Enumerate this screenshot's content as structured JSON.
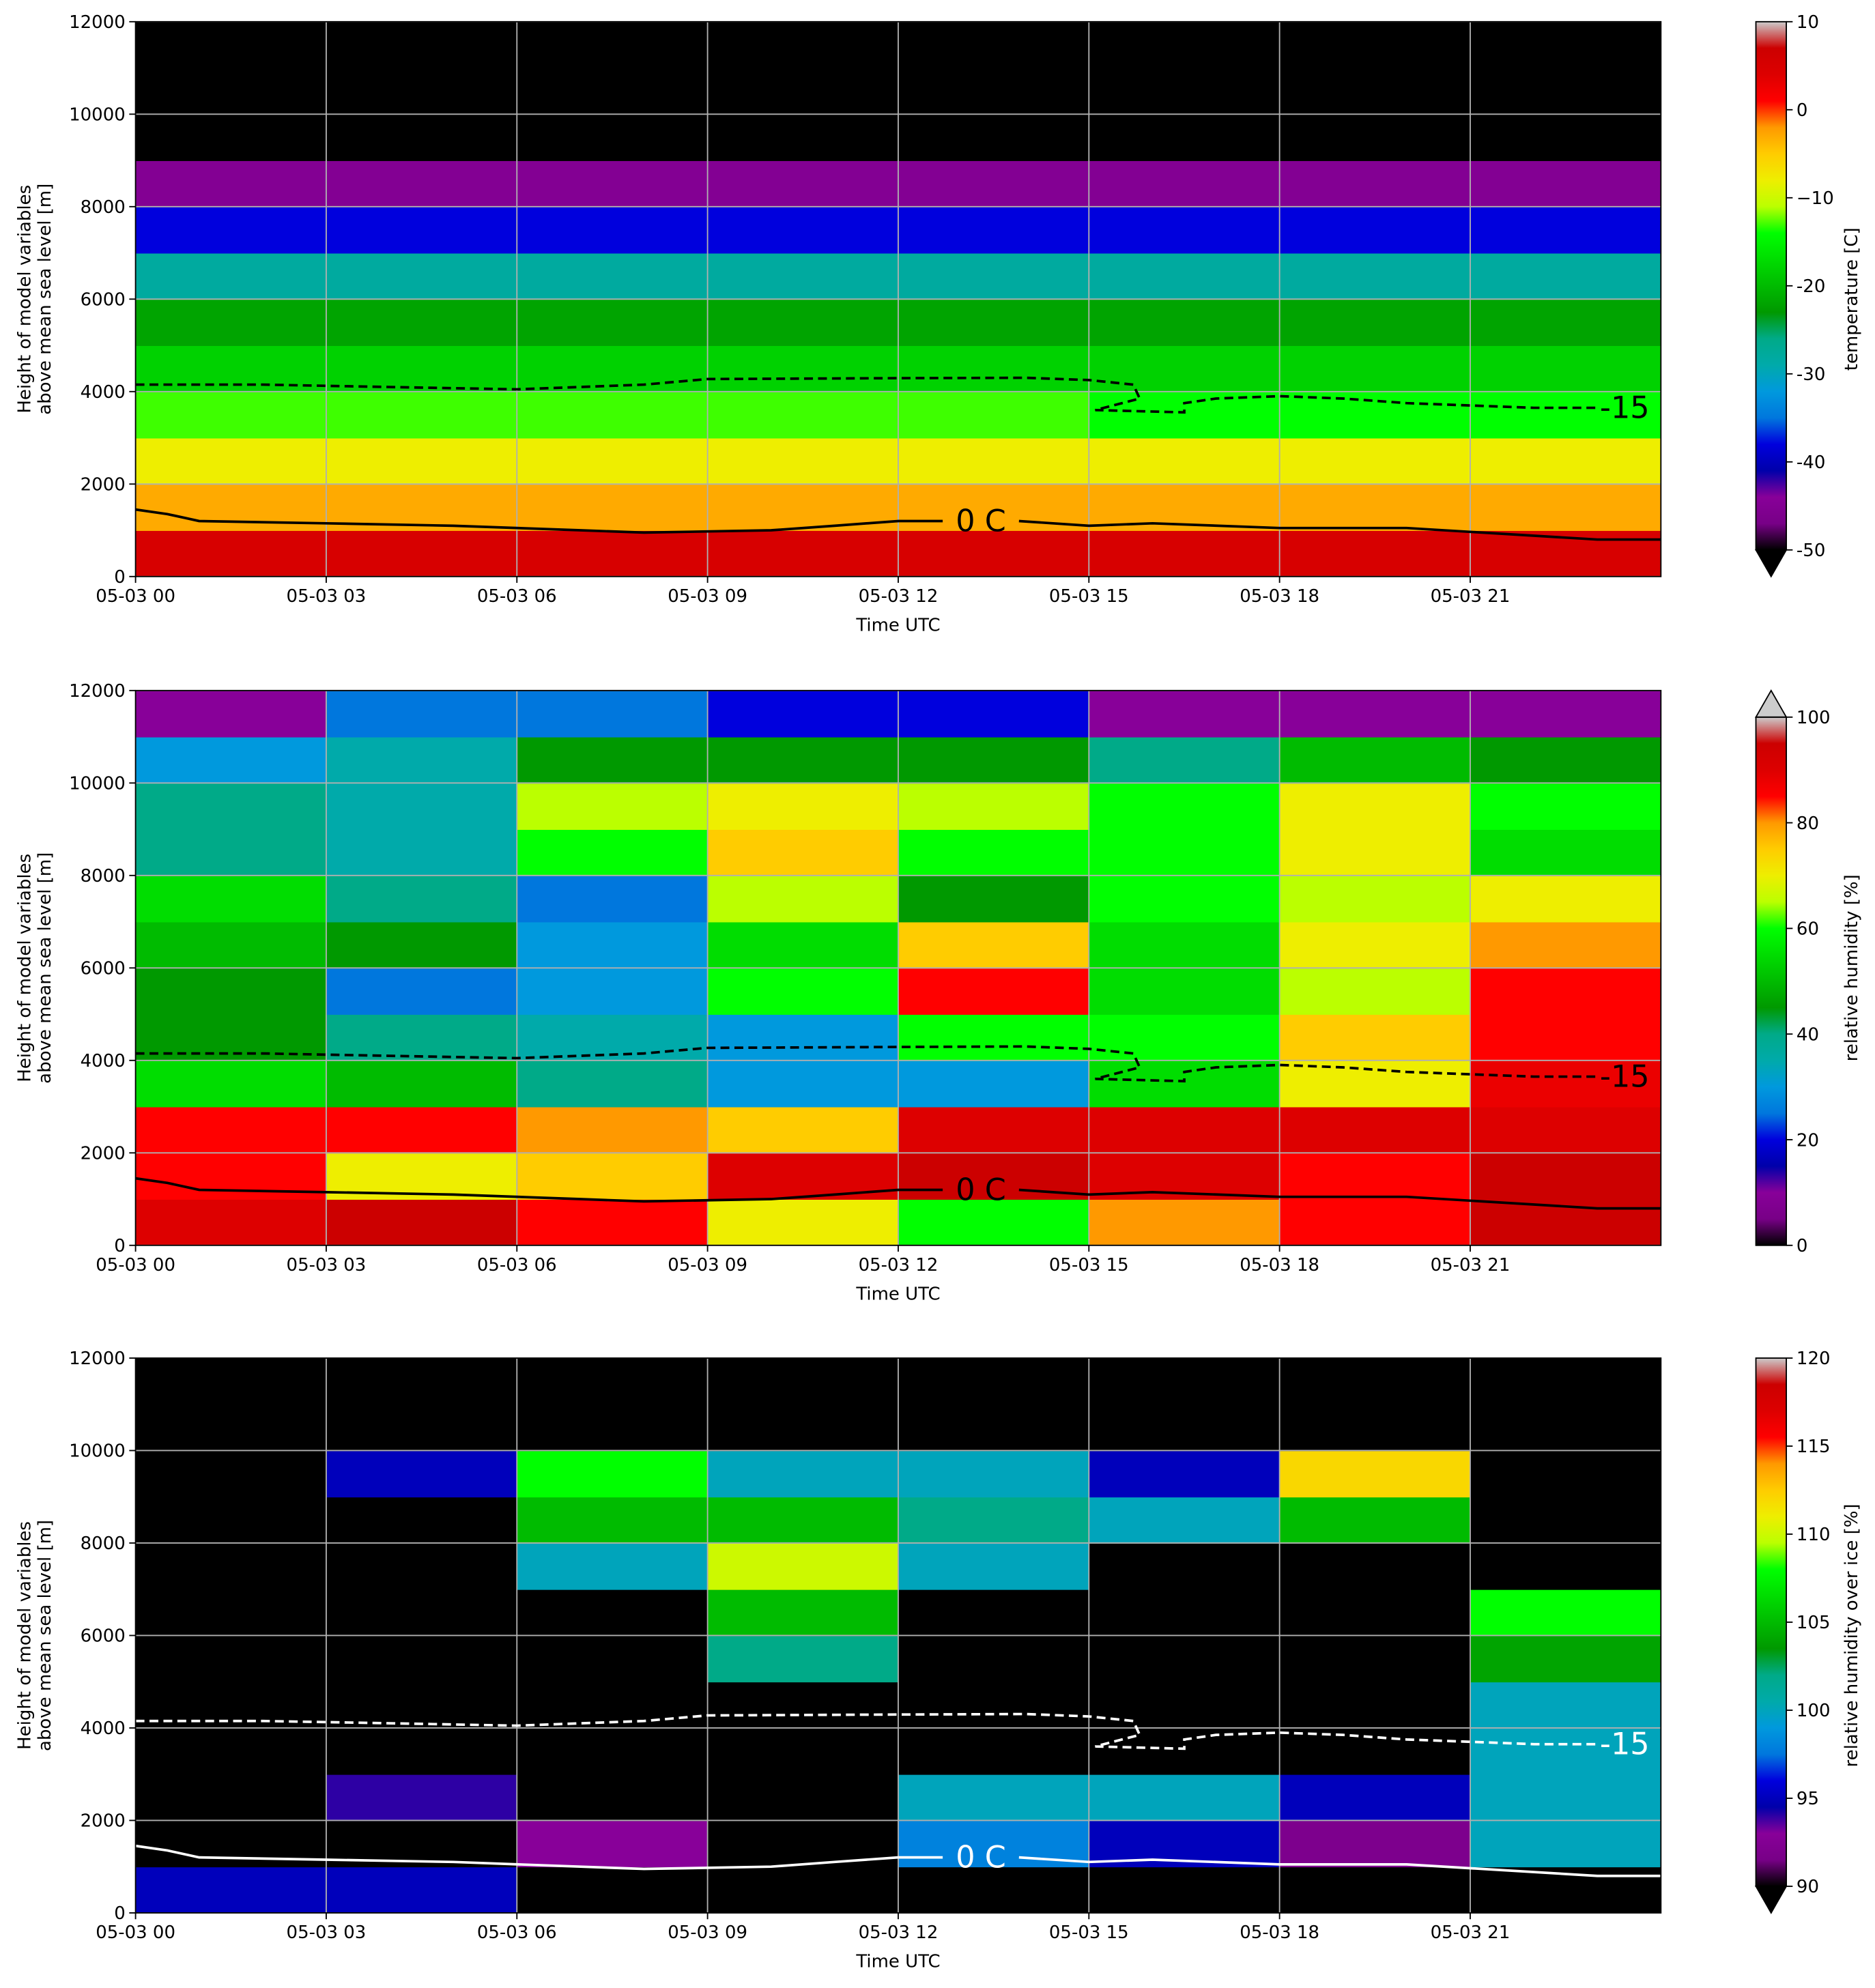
{
  "chart_data": [
    {
      "type": "heatmap",
      "xlabel": "Time UTC",
      "ylabel": [
        "Height of model variables",
        "above mean sea level [m]"
      ],
      "colorbar_label": "temperature [C]",
      "vmin": -50,
      "vmax": 10,
      "extend": "min",
      "colormap": [
        "#000000",
        "#780087",
        "#880099",
        "#0000aa",
        "#0000dd",
        "#0077dd",
        "#0099dd",
        "#00aaaa",
        "#00aa88",
        "#009900",
        "#00bb00",
        "#00dd00",
        "#00ff00",
        "#bbff00",
        "#eeee00",
        "#ffcc00",
        "#ff9900",
        "#ff0000",
        "#dd0000",
        "#cc0000",
        "#cccccc"
      ],
      "cbticks": [
        -50,
        -40,
        -30,
        -20,
        {
          "value": -10,
          "label": "−10"
        },
        0,
        10
      ],
      "cbticks_labels_fix": null,
      "xlim": [
        0,
        24
      ],
      "ylim": [
        0,
        12000
      ],
      "xticks": [
        {
          "value": 0,
          "label": "05-03 00"
        },
        {
          "value": 3,
          "label": "05-03 03"
        },
        {
          "value": 6,
          "label": "05-03 06"
        },
        {
          "value": 9,
          "label": "05-03 09"
        },
        {
          "value": 12,
          "label": "05-03 12"
        },
        {
          "value": 15,
          "label": "05-03 15"
        },
        {
          "value": 18,
          "label": "05-03 18"
        },
        {
          "value": 21,
          "label": "05-03 21"
        }
      ],
      "yticks": [
        0,
        2000,
        4000,
        6000,
        8000,
        10000,
        12000
      ],
      "grid": true,
      "x": [
        1.5,
        4.5,
        7.5,
        10.5,
        13.5,
        16.5,
        19.5,
        22.5
      ],
      "y": [
        500,
        1500,
        2500,
        3500,
        4500,
        5500,
        6500,
        7500,
        8500,
        9500,
        10500,
        11500
      ],
      "z": [
        [
          5,
          5,
          5,
          5,
          5,
          5,
          5,
          5
        ],
        [
          -3,
          -3,
          -3,
          -3,
          -3,
          -3,
          -3,
          -3
        ],
        [
          -8,
          -8,
          -8,
          -8,
          -8,
          -8,
          -8,
          -8
        ],
        [
          -13,
          -13,
          -13,
          -13,
          -13,
          -14,
          -14,
          -14
        ],
        [
          -18,
          -18,
          -18,
          -18,
          -18,
          -18,
          -18,
          -18
        ],
        [
          -22,
          -22,
          -22,
          -22,
          -22,
          -22,
          -22,
          -22
        ],
        [
          -28,
          -28,
          -28,
          -28,
          -28,
          -28,
          -28,
          -28
        ],
        [
          -38,
          -38,
          -38,
          -38,
          -38,
          -38,
          -38,
          -38
        ],
        [
          -45,
          -45,
          -45,
          -45,
          -45,
          -45,
          -45,
          -45
        ],
        [
          -55,
          -55,
          -55,
          -55,
          -55,
          -55,
          -55,
          -55
        ],
        [
          -58,
          -58,
          -58,
          -58,
          -58,
          -58,
          -58,
          -58
        ],
        [
          -58,
          -58,
          -58,
          -58,
          -58,
          -58,
          -58,
          -58
        ]
      ],
      "contour_color": "#000000",
      "contours": [
        {
          "label": "-15",
          "dashed": true,
          "x": [
            0,
            2,
            4,
            6,
            8,
            9,
            12,
            14,
            15,
            15.7,
            15.8,
            15.1,
            16.5,
            16.5,
            17,
            18,
            19,
            20,
            22,
            23
          ],
          "y": [
            4150,
            4150,
            4100,
            4050,
            4150,
            4270,
            4290,
            4300,
            4250,
            4150,
            3850,
            3600,
            3550,
            3750,
            3850,
            3900,
            3850,
            3750,
            3650,
            3650
          ]
        },
        {
          "label": "0 C",
          "dashed": false,
          "x": [
            0,
            0.5,
            1,
            3,
            5,
            7,
            8,
            10,
            11,
            12,
            12.7,
            null,
            13.9,
            15,
            16,
            18,
            20,
            23,
            24
          ],
          "y": [
            1450,
            1350,
            1200,
            1150,
            1100,
            1000,
            950,
            1000,
            1100,
            1200,
            1200,
            null,
            1200,
            1100,
            1150,
            1050,
            1050,
            800,
            800
          ]
        }
      ]
    },
    {
      "type": "heatmap",
      "xlabel": "Time UTC",
      "ylabel": [
        "Height of model variables",
        "above mean sea level [m]"
      ],
      "colorbar_label": "relative humidity [%]",
      "vmin": 0,
      "vmax": 100,
      "extend": "max",
      "colormap": [
        "#000000",
        "#780087",
        "#880099",
        "#0000aa",
        "#0000dd",
        "#0077dd",
        "#0099dd",
        "#00aaaa",
        "#00aa88",
        "#009900",
        "#00bb00",
        "#00dd00",
        "#00ff00",
        "#bbff00",
        "#eeee00",
        "#ffcc00",
        "#ff9900",
        "#ff0000",
        "#dd0000",
        "#cc0000",
        "#cccccc"
      ],
      "cbticks": [
        0,
        20,
        40,
        60,
        80,
        100
      ],
      "xlim": [
        0,
        24
      ],
      "ylim": [
        0,
        12000
      ],
      "xticks": [
        {
          "value": 0,
          "label": "05-03 00"
        },
        {
          "value": 3,
          "label": "05-03 03"
        },
        {
          "value": 6,
          "label": "05-03 06"
        },
        {
          "value": 9,
          "label": "05-03 09"
        },
        {
          "value": 12,
          "label": "05-03 12"
        },
        {
          "value": 15,
          "label": "05-03 15"
        },
        {
          "value": 18,
          "label": "05-03 18"
        },
        {
          "value": 21,
          "label": "05-03 21"
        }
      ],
      "yticks": [
        0,
        2000,
        4000,
        6000,
        8000,
        10000,
        12000
      ],
      "grid": true,
      "x": [
        1.5,
        4.5,
        7.5,
        10.5,
        13.5,
        16.5,
        19.5,
        22.5
      ],
      "y": [
        500,
        1500,
        2500,
        3500,
        4500,
        5500,
        6500,
        7500,
        8500,
        9500,
        10500,
        11500
      ],
      "z": [
        [
          90,
          95,
          85,
          70,
          60,
          80,
          85,
          95
        ],
        [
          85,
          70,
          75,
          90,
          95,
          90,
          85,
          95
        ],
        [
          85,
          85,
          80,
          75,
          90,
          90,
          90,
          90
        ],
        [
          55,
          50,
          40,
          30,
          30,
          55,
          70,
          88
        ],
        [
          45,
          40,
          35,
          30,
          60,
          60,
          75,
          85
        ],
        [
          45,
          25,
          30,
          60,
          85,
          55,
          65,
          85
        ],
        [
          50,
          45,
          30,
          55,
          75,
          55,
          70,
          80
        ],
        [
          55,
          40,
          25,
          65,
          45,
          60,
          65,
          70
        ],
        [
          40,
          35,
          60,
          75,
          60,
          60,
          70,
          55
        ],
        [
          40,
          35,
          65,
          70,
          65,
          60,
          70,
          60
        ],
        [
          30,
          35,
          45,
          45,
          45,
          40,
          50,
          45
        ],
        [
          10,
          25,
          25,
          20,
          20,
          10,
          10,
          10
        ]
      ],
      "contour_color": "#000000",
      "contours": [
        {
          "label": "-15",
          "dashed": true,
          "x": [
            0,
            2,
            4,
            6,
            8,
            9,
            12,
            14,
            15,
            15.7,
            15.8,
            15.1,
            16.5,
            16.5,
            17,
            18,
            19,
            20,
            22,
            23
          ],
          "y": [
            4150,
            4150,
            4100,
            4050,
            4150,
            4270,
            4290,
            4300,
            4250,
            4150,
            3850,
            3600,
            3550,
            3750,
            3850,
            3900,
            3850,
            3750,
            3650,
            3650
          ]
        },
        {
          "label": "0 C",
          "dashed": false,
          "x": [
            0,
            0.5,
            1,
            3,
            5,
            7,
            8,
            10,
            11,
            12,
            12.7,
            null,
            13.9,
            15,
            16,
            18,
            20,
            23,
            24
          ],
          "y": [
            1450,
            1350,
            1200,
            1150,
            1100,
            1000,
            950,
            1000,
            1100,
            1200,
            1200,
            null,
            1200,
            1100,
            1150,
            1050,
            1050,
            800,
            800
          ]
        }
      ]
    },
    {
      "type": "heatmap",
      "xlabel": "Time UTC",
      "ylabel": [
        "Height of model variables",
        "above mean sea level [m]"
      ],
      "colorbar_label": "relative humidity over ice [%]",
      "vmin": 90,
      "vmax": 120,
      "extend": "min",
      "colormap": [
        "#000000",
        "#780087",
        "#880099",
        "#0000aa",
        "#0000dd",
        "#0077dd",
        "#0099dd",
        "#00aaaa",
        "#00aa88",
        "#009900",
        "#00bb00",
        "#00dd00",
        "#00ff00",
        "#bbff00",
        "#eeee00",
        "#ffcc00",
        "#ff9900",
        "#ff0000",
        "#dd0000",
        "#cc0000",
        "#cccccc"
      ],
      "cbticks": [
        90,
        95,
        100,
        105,
        110,
        115,
        120
      ],
      "xlim": [
        0,
        24
      ],
      "ylim": [
        0,
        12000
      ],
      "xticks": [
        {
          "value": 0,
          "label": "05-03 00"
        },
        {
          "value": 3,
          "label": "05-03 03"
        },
        {
          "value": 6,
          "label": "05-03 06"
        },
        {
          "value": 9,
          "label": "05-03 09"
        },
        {
          "value": 12,
          "label": "05-03 12"
        },
        {
          "value": 15,
          "label": "05-03 15"
        },
        {
          "value": 18,
          "label": "05-03 18"
        },
        {
          "value": 21,
          "label": "05-03 21"
        }
      ],
      "yticks": [
        0,
        2000,
        4000,
        6000,
        8000,
        10000,
        12000
      ],
      "grid": true,
      "x": [
        1.5,
        4.5,
        7.5,
        10.5,
        13.5,
        16.5,
        19.5,
        22.5
      ],
      "y": [
        500,
        1500,
        2500,
        3500,
        4500,
        5500,
        6500,
        7500,
        8500,
        9500,
        10500,
        11500
      ],
      "z": [
        [
          95,
          95,
          85,
          85,
          85,
          85,
          85,
          85
        ],
        [
          85,
          85,
          93,
          90,
          98,
          95,
          92,
          100
        ],
        [
          85,
          94,
          85,
          85,
          100,
          100,
          95,
          100
        ],
        [
          85,
          85,
          85,
          85,
          85,
          85,
          85,
          100
        ],
        [
          85,
          85,
          85,
          85,
          85,
          85,
          85,
          100
        ],
        [
          85,
          85,
          85,
          102,
          85,
          85,
          85,
          104
        ],
        [
          85,
          85,
          85,
          105,
          85,
          85,
          85,
          108
        ],
        [
          85,
          85,
          100,
          110,
          100,
          85,
          85,
          85
        ],
        [
          85,
          85,
          105,
          105,
          102,
          100,
          105,
          85
        ],
        [
          85,
          95,
          108,
          100,
          100,
          95,
          112,
          85
        ],
        [
          85,
          85,
          85,
          85,
          85,
          85,
          85,
          85
        ],
        [
          85,
          85,
          85,
          85,
          85,
          85,
          85,
          85
        ]
      ],
      "contour_color": "#ffffff",
      "contours": [
        {
          "label": "-15",
          "dashed": true,
          "x": [
            0,
            2,
            4,
            6,
            8,
            9,
            12,
            14,
            15,
            15.7,
            15.8,
            15.1,
            16.5,
            16.5,
            17,
            18,
            19,
            20,
            22,
            23
          ],
          "y": [
            4150,
            4150,
            4100,
            4050,
            4150,
            4270,
            4290,
            4300,
            4250,
            4150,
            3850,
            3600,
            3550,
            3750,
            3850,
            3900,
            3850,
            3750,
            3650,
            3650
          ]
        },
        {
          "label": "0 C",
          "dashed": false,
          "x": [
            0,
            0.5,
            1,
            3,
            5,
            7,
            8,
            10,
            11,
            12,
            12.7,
            null,
            13.9,
            15,
            16,
            18,
            20,
            23,
            24
          ],
          "y": [
            1450,
            1350,
            1200,
            1150,
            1100,
            1000,
            950,
            1000,
            1100,
            1200,
            1200,
            null,
            1200,
            1100,
            1150,
            1050,
            1050,
            800,
            800
          ]
        }
      ]
    }
  ]
}
